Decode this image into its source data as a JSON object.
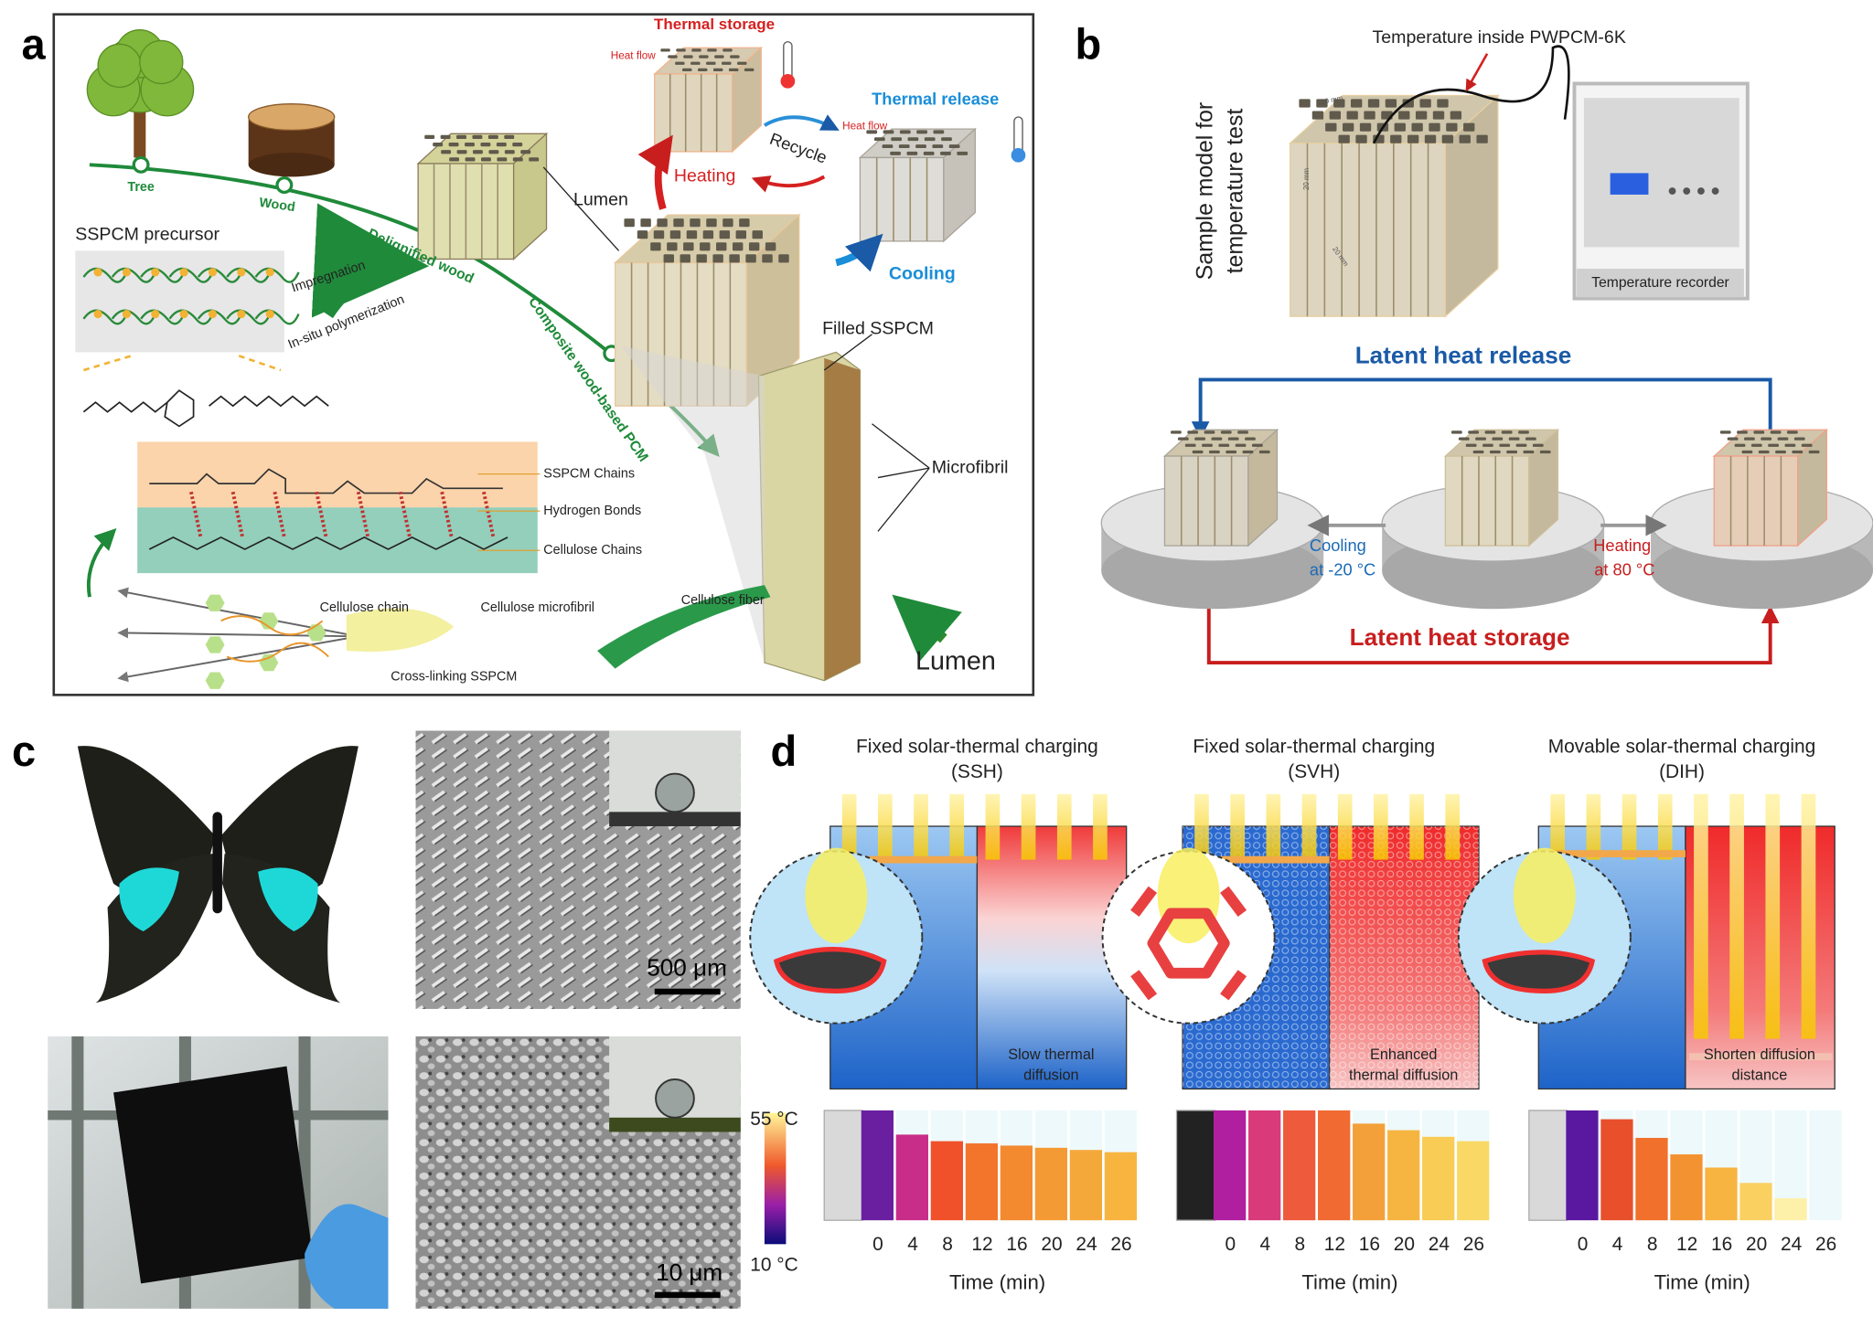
{
  "panel_labels": [
    "a",
    "b",
    "c",
    "d"
  ],
  "panel_a": {
    "thermal_storage": "Thermal storage",
    "heat_flow_storage": "Heat flow",
    "thermal_release": "Thermal release",
    "heat_flow_release": "Heat flow",
    "recycle": "Recycle",
    "heating": "Heating",
    "cooling": "Cooling",
    "tree": "Tree",
    "wood": "Wood",
    "lumen_top": "Lumen",
    "precursor": "SSPCM precursor",
    "impregnation": "Impregnation",
    "polymerization": "In-situ polymerization",
    "delignified": "Delignified wood",
    "composite": "Composite wood-based PCM",
    "filled": "Filled SSPCM",
    "microfibril": "Microfibril",
    "sspcm_chains": "SSPCM Chains",
    "hydrogen_bonds": "Hydrogen Bonds",
    "cellulose_chains": "Cellulose Chains",
    "cellulose_chain": "Cellulose chain",
    "cellulose_microfibril": "Cellulose microfibril",
    "cellulose_fiber": "Cellulose fiber",
    "cross_linking": "Cross-linking SSPCM",
    "lumen_bottom": "Lumen"
  },
  "panel_b": {
    "probe": "Temperature inside PWPCM-6K",
    "sample_model": [
      "Sample model for",
      "temperature test"
    ],
    "dimensions": [
      "20 mm",
      "20 mm",
      "20 mm"
    ],
    "recorder": "Temperature recorder",
    "release": "Latent heat release",
    "cooling": [
      "Cooling",
      "at -20 °C"
    ],
    "heating": [
      "Heating",
      "at 80 °C"
    ],
    "storage": "Latent heat storage"
  },
  "panel_c": {
    "scale_top": "500 μm",
    "scale_bottom": "10 μm"
  },
  "panel_d": {
    "modes": [
      {
        "title": "Fixed solar-thermal charging",
        "abbr": "(SSH)",
        "note": [
          "Slow thermal",
          "diffusion"
        ],
        "times": [
          0,
          4,
          8,
          12,
          16,
          20,
          24,
          26
        ],
        "axis": "Time (min)"
      },
      {
        "title": "Fixed solar-thermal charging",
        "abbr": "(SVH)",
        "note": [
          "Enhanced",
          "thermal diffusion"
        ],
        "times": [
          0,
          4,
          8,
          12,
          16,
          20,
          24,
          26
        ],
        "axis": "Time (min)"
      },
      {
        "title": "Movable solar-thermal charging",
        "abbr": "(DIH)",
        "note": [
          "Shorten diffusion",
          "distance"
        ],
        "times": [
          0,
          4,
          8,
          12,
          16,
          20,
          24,
          26
        ],
        "axis": "Time (min)"
      }
    ],
    "colorbar_max": "55 °C",
    "colorbar_min": "10 °C"
  }
}
